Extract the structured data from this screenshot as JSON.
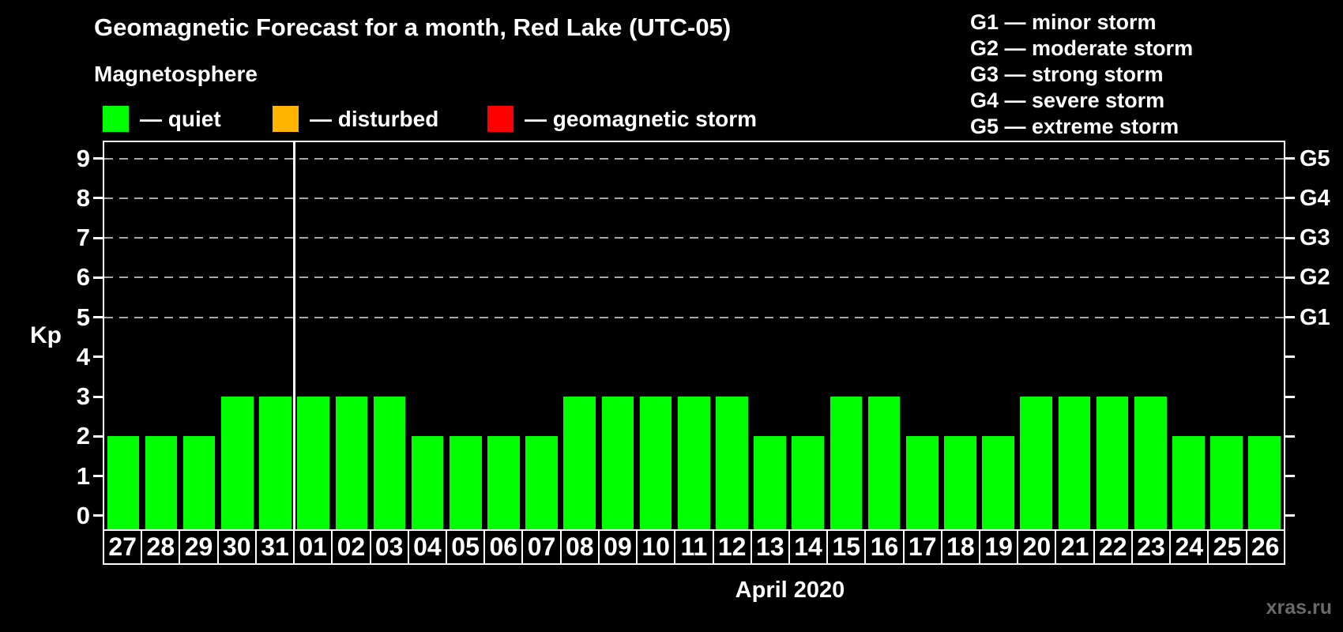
{
  "header": {
    "title": "Geomagnetic Forecast for a month, Red Lake (UTC-05)"
  },
  "legend": {
    "title": "Magnetosphere",
    "items": [
      {
        "key": "quiet",
        "label": "— quiet",
        "color": "#00ff00"
      },
      {
        "key": "disturbed",
        "label": "— disturbed",
        "color": "#ffb400"
      },
      {
        "key": "storm",
        "label": "— geomagnetic storm",
        "color": "#ff0000"
      }
    ]
  },
  "g_scale": [
    {
      "code": "G1",
      "text": "G1 — minor storm",
      "kp": 5
    },
    {
      "code": "G2",
      "text": "G2 — moderate storm",
      "kp": 6
    },
    {
      "code": "G3",
      "text": "G3 — strong storm",
      "kp": 7
    },
    {
      "code": "G4",
      "text": "G4 — severe storm",
      "kp": 8
    },
    {
      "code": "G5",
      "text": "G5 — extreme storm",
      "kp": 9
    }
  ],
  "chart_data": {
    "type": "bar",
    "title": "Geomagnetic Forecast for a month, Red Lake (UTC-05)",
    "xlabel": "April 2020",
    "ylabel": "Kp",
    "categories": [
      "27",
      "28",
      "29",
      "30",
      "31",
      "01",
      "02",
      "03",
      "04",
      "05",
      "06",
      "07",
      "08",
      "09",
      "10",
      "11",
      "12",
      "13",
      "14",
      "15",
      "16",
      "17",
      "18",
      "19",
      "20",
      "21",
      "22",
      "23",
      "24",
      "25",
      "26"
    ],
    "values": [
      2,
      2,
      2,
      3,
      3,
      3,
      3,
      3,
      2,
      2,
      2,
      2,
      3,
      3,
      3,
      3,
      3,
      2,
      2,
      3,
      3,
      2,
      2,
      2,
      3,
      3,
      3,
      3,
      2,
      2,
      2
    ],
    "ylim": [
      0,
      9
    ],
    "yticks": [
      0,
      1,
      2,
      3,
      4,
      5,
      6,
      7,
      8,
      9
    ],
    "grid_levels": [
      5,
      6,
      7,
      8,
      9
    ],
    "month_divider_after_index": 4,
    "bar_color_quiet": "#00ff00",
    "bar_color_disturbed": "#ffb400",
    "bar_color_storm": "#ff0000",
    "grid_on": true,
    "legend_position": "top"
  },
  "footer": {
    "watermark": "xras.ru"
  }
}
